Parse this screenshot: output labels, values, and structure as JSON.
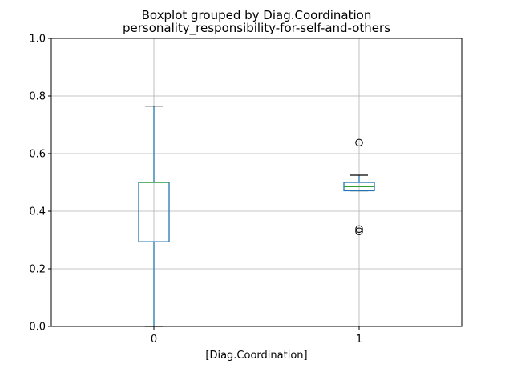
{
  "chart_data": {
    "type": "boxplot",
    "title": "Boxplot grouped by Diag.Coordination",
    "subtitle": "personality_responsibility-for-self-and-others",
    "xlabel": "[Diag.Coordination]",
    "ylabel": "",
    "ylim": [
      0.0,
      1.0
    ],
    "y_ticks": [
      0.0,
      0.2,
      0.4,
      0.6,
      0.8,
      1.0
    ],
    "y_tick_labels": [
      "0.0",
      "0.2",
      "0.4",
      "0.6",
      "0.8",
      "1.0"
    ],
    "categories": [
      "0",
      "1"
    ],
    "grid": true,
    "boxes": [
      {
        "category": "0",
        "whisker_low": 0.0,
        "q1": 0.294,
        "median": 0.5,
        "q3": 0.5,
        "whisker_high": 0.765,
        "outliers": []
      },
      {
        "category": "1",
        "whisker_low": 0.471,
        "q1": 0.471,
        "median": 0.485,
        "q3": 0.5,
        "whisker_high": 0.525,
        "outliers": [
          0.638,
          0.338,
          0.33
        ]
      }
    ],
    "colors": {
      "box": "#1f77b4",
      "median": "#2ca02c",
      "whisker_cap": "#000000",
      "grid": "#b0b0b0",
      "axes": "#000000"
    }
  }
}
